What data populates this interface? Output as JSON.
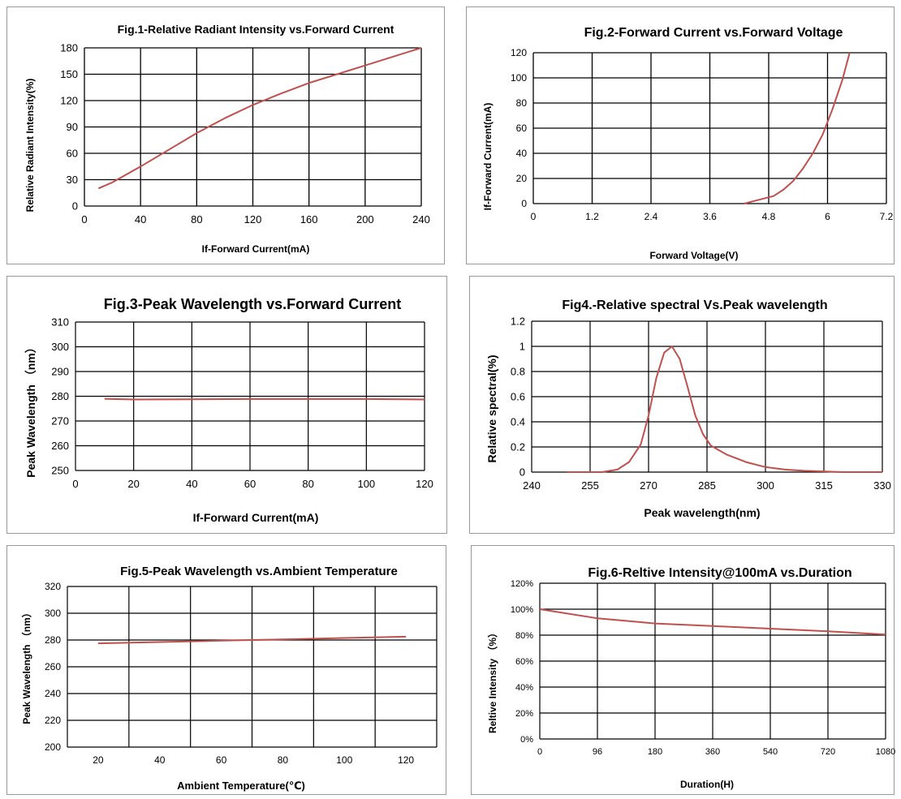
{
  "colors": {
    "curve": "#c0504d",
    "grid": "#000000",
    "frame": "#9a9a9a"
  },
  "charts": [
    {
      "title": "Fig.1-Relative Radiant Intensity vs.Forward  Current",
      "xlabel": "If-Forward Current(mA)",
      "ylabel": "Relative Radiant Intensity(%)",
      "xticks": [
        "0",
        "40",
        "80",
        "120",
        "160",
        "200",
        "240"
      ],
      "yticks": [
        "0",
        "30",
        "60",
        "90",
        "120",
        "150",
        "180"
      ],
      "chart_data": {
        "type": "line",
        "xlim": [
          0,
          240
        ],
        "ylim": [
          0,
          180
        ],
        "xgrid": [
          0,
          40,
          80,
          120,
          160,
          200,
          240
        ],
        "ygrid": [
          0,
          30,
          60,
          90,
          120,
          150,
          180
        ],
        "series": [
          {
            "x": [
              10,
              20,
              30,
              40,
              60,
              80,
              100,
              120,
              140,
              160,
              180,
              200,
              220,
              240
            ],
            "y": [
              20,
              27,
              36,
              45,
              64,
              83,
              100,
              115,
              128,
              140,
              150,
              160,
              170,
              180
            ]
          }
        ]
      }
    },
    {
      "title": "Fig.2-Forward Current vs.Forward Voltage",
      "xlabel": "Forward Voltage(V)",
      "ylabel": "If-Forward Current(mA)",
      "xticks": [
        "0",
        "1.2",
        "2.4",
        "3.6",
        "4.8",
        "6",
        "7.2"
      ],
      "yticks": [
        "0",
        "20",
        "40",
        "60",
        "80",
        "100",
        "120"
      ],
      "chart_data": {
        "type": "line",
        "xlim": [
          0,
          7.2
        ],
        "ylim": [
          0,
          120
        ],
        "xgrid": [
          0,
          1.2,
          2.4,
          3.6,
          4.8,
          6,
          7.2
        ],
        "ygrid": [
          0,
          20,
          40,
          60,
          80,
          100,
          120
        ],
        "series": [
          {
            "x": [
              4.3,
              4.6,
              4.9,
              5.1,
              5.3,
              5.5,
              5.7,
              5.9,
              6.1,
              6.3,
              6.45
            ],
            "y": [
              0,
              3,
              6,
              11,
              18,
              28,
              40,
              55,
              75,
              98,
              120
            ]
          }
        ]
      }
    },
    {
      "title": "Fig.3-Peak Wavelength vs.Forward Current",
      "xlabel": "If-Forward Current(mA)",
      "ylabel": "Peak Wavelength （nm）",
      "xticks": [
        "0",
        "20",
        "40",
        "60",
        "80",
        "100",
        "120"
      ],
      "yticks": [
        "250",
        "260",
        "270",
        "280",
        "290",
        "300",
        "310"
      ],
      "chart_data": {
        "type": "line",
        "xlim": [
          0,
          120
        ],
        "ylim": [
          250,
          310
        ],
        "xgrid": [
          0,
          20,
          40,
          60,
          80,
          100,
          120
        ],
        "ygrid": [
          250,
          260,
          270,
          280,
          290,
          300,
          310
        ],
        "series": [
          {
            "x": [
              10,
              20,
              40,
              60,
              80,
              100,
              120
            ],
            "y": [
              279,
              278.7,
              278.8,
              278.9,
              278.9,
              278.9,
              278.7
            ]
          }
        ]
      }
    },
    {
      "title": "Fig4.-Relative spectral Vs.Peak wavelength",
      "xlabel": "Peak wavelength(nm)",
      "ylabel": "Relative spectral(%)",
      "xticks": [
        "240",
        "255",
        "270",
        "285",
        "300",
        "315",
        "330"
      ],
      "yticks": [
        "0",
        "0.2",
        "0.4",
        "0.6",
        "0.8",
        "1",
        "1.2"
      ],
      "chart_data": {
        "type": "line",
        "xlim": [
          240,
          330
        ],
        "ylim": [
          0,
          1.2
        ],
        "xgrid": [
          240,
          255,
          270,
          285,
          300,
          315,
          330
        ],
        "ygrid": [
          0,
          0.2,
          0.4,
          0.6,
          0.8,
          1,
          1.2
        ],
        "series": [
          {
            "x": [
              249,
              258,
              262,
              265,
              268,
              270,
              272,
              274,
              276,
              278,
              280,
              282,
              284,
              286,
              290,
              295,
              300,
              305,
              310,
              320,
              330
            ],
            "y": [
              0,
              0,
              0.02,
              0.08,
              0.22,
              0.45,
              0.75,
              0.95,
              1.0,
              0.9,
              0.68,
              0.45,
              0.3,
              0.21,
              0.14,
              0.08,
              0.04,
              0.02,
              0.01,
              0,
              0
            ]
          }
        ]
      }
    },
    {
      "title": "Fig.5-Peak Wavelength vs.Ambient Temperature",
      "xlabel": "Ambient Temperature(℃)",
      "ylabel": "Peak Wavelength （nm）",
      "xticks": [
        "20",
        "40",
        "60",
        "80",
        "100",
        "120"
      ],
      "yticks": [
        "200",
        "220",
        "240",
        "260",
        "280",
        "300",
        "320"
      ],
      "chart_data": {
        "type": "line",
        "xlim": [
          10,
          130
        ],
        "ylim": [
          200,
          320
        ],
        "xgrid": [
          10,
          30,
          50,
          70,
          90,
          110,
          130
        ],
        "ygrid": [
          200,
          220,
          240,
          260,
          280,
          300,
          320
        ],
        "xtickvals": [
          20,
          40,
          60,
          80,
          100,
          120
        ],
        "series": [
          {
            "x": [
              20,
              40,
              60,
              80,
              100,
              120
            ],
            "y": [
              277.5,
              278.5,
              279.5,
              280.5,
              281.5,
              282.5
            ]
          }
        ]
      }
    },
    {
      "title": "Fig.6-Reltive Intensity@100mA vs.Duration",
      "xlabel": "Duration(H)",
      "ylabel": "Reltive Intensity （%）",
      "xticks": [
        "0",
        "96",
        "180",
        "360",
        "540",
        "720",
        "1080"
      ],
      "yticks": [
        "0%",
        "20%",
        "40%",
        "60%",
        "80%",
        "100%",
        "120%"
      ],
      "chart_data": {
        "type": "line",
        "xcategories": [
          "0",
          "96",
          "180",
          "360",
          "540",
          "720",
          "1080"
        ],
        "ylim": [
          0,
          120
        ],
        "xgrid_index": [
          0,
          1,
          2,
          3,
          4,
          5,
          6
        ],
        "ygrid": [
          0,
          20,
          40,
          60,
          80,
          100,
          120
        ],
        "series": [
          {
            "x_index": [
              0,
              1,
              2,
              3,
              4,
              5,
              6
            ],
            "y": [
              100,
              93,
              89,
              87,
              85,
              83,
              80.5
            ]
          }
        ]
      }
    }
  ]
}
